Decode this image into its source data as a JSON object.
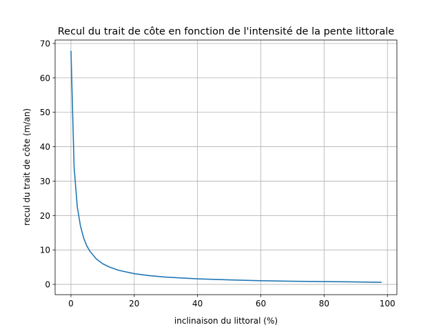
{
  "chart_data": {
    "type": "line",
    "title": "Recul du trait de côte en fonction de l'intensité de la pente littorale",
    "xlabel": "inclinaison du littoral (%)",
    "ylabel": "recul du trait de côte (m/an)",
    "xlim": [
      -5,
      103
    ],
    "ylim": [
      -3,
      71
    ],
    "xticks": [
      0,
      20,
      40,
      60,
      80,
      100
    ],
    "yticks": [
      0,
      10,
      20,
      30,
      40,
      50,
      60,
      70
    ],
    "grid": true,
    "series": [
      {
        "color": "#1f77b4",
        "x": [
          0.01,
          0.5,
          1,
          2,
          3,
          4,
          5,
          6,
          8,
          10,
          12,
          15,
          20,
          25,
          30,
          40,
          50,
          60,
          70,
          80,
          90,
          98
        ],
        "y": [
          67.7,
          51,
          34,
          22.5,
          17,
          13.5,
          11.2,
          9.6,
          7.4,
          6.0,
          5.1,
          4.1,
          3.1,
          2.5,
          2.1,
          1.6,
          1.3,
          1.05,
          0.9,
          0.8,
          0.7,
          0.6
        ]
      }
    ]
  }
}
